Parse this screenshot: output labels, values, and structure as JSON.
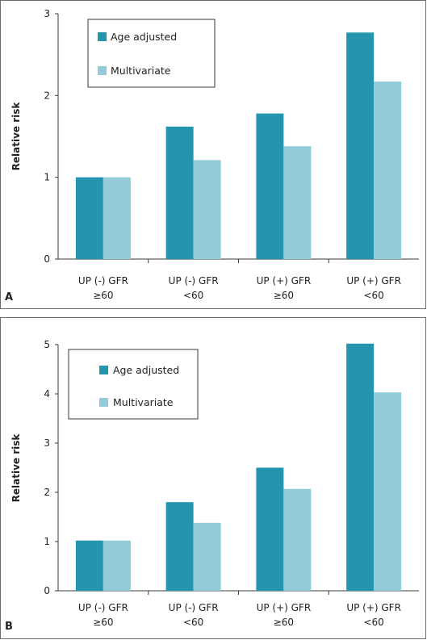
{
  "colors": {
    "age_adjusted": "#2396ad",
    "multivariate": "#93ccd8"
  },
  "chart_data": [
    {
      "type": "bar",
      "panel": "A",
      "categories": [
        [
          "UP (-) GFR",
          "≥60"
        ],
        [
          "UP (-) GFR",
          "<60"
        ],
        [
          "UP (+) GFR",
          "≥60"
        ],
        [
          "UP (+) GFR",
          "<60"
        ]
      ],
      "series": [
        {
          "name": "Age adjusted",
          "values": [
            1.0,
            1.62,
            1.78,
            2.77
          ]
        },
        {
          "name": "Multivariate",
          "values": [
            1.0,
            1.21,
            1.38,
            2.17
          ]
        }
      ],
      "ylabel": "Relative risk",
      "ylim": [
        0,
        3
      ],
      "yticks": [
        "0",
        "1",
        "2",
        "3"
      ],
      "legend": "top-left",
      "grid": false
    },
    {
      "type": "bar",
      "panel": "B",
      "categories": [
        [
          "UP (-) GFR",
          "≥60"
        ],
        [
          "UP (-) GFR",
          "<60"
        ],
        [
          "UP (+) GFR",
          "≥60"
        ],
        [
          "UP (+) GFR",
          "<60"
        ]
      ],
      "series": [
        {
          "name": "Age adjusted",
          "values": [
            1.02,
            1.8,
            2.5,
            5.02
          ]
        },
        {
          "name": "Multivariate",
          "values": [
            1.02,
            1.38,
            2.07,
            4.03
          ]
        }
      ],
      "ylabel": "Relative risk",
      "ylim": [
        0,
        5
      ],
      "yticks": [
        "0",
        "1",
        "2",
        "3",
        "4",
        "5"
      ],
      "legend": "top-left",
      "grid": false
    }
  ]
}
